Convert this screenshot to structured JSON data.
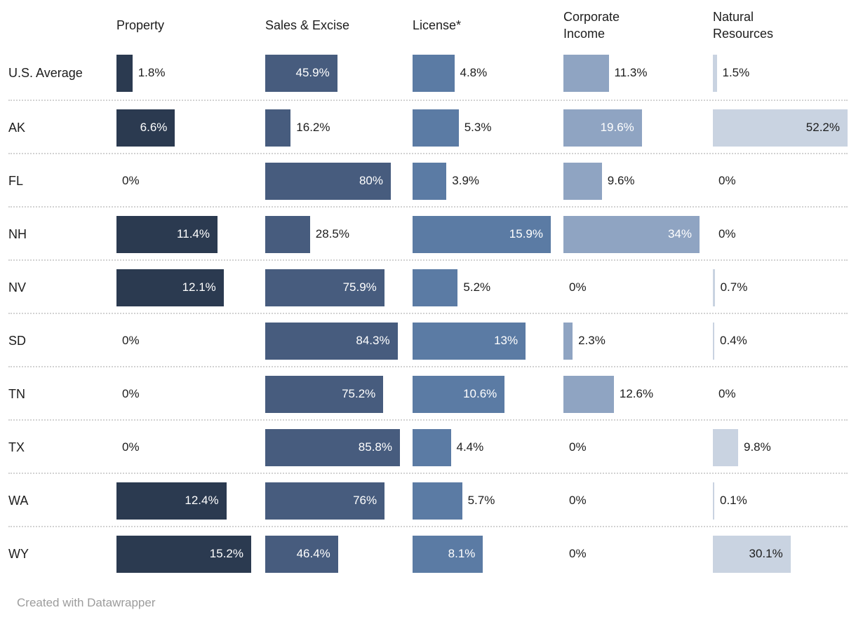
{
  "chart_data": {
    "type": "bar",
    "variant": "horizontal-split-bars-table",
    "title": "",
    "legend_position": "none",
    "grid": "dotted-row-separators",
    "categories": [
      "U.S. Average",
      "AK",
      "FL",
      "NH",
      "NV",
      "SD",
      "TN",
      "TX",
      "WA",
      "WY"
    ],
    "series": [
      {
        "name": "Property",
        "color": "#2b3a50",
        "axis_max": 15.2,
        "values": [
          1.8,
          6.6,
          0,
          11.4,
          12.1,
          0,
          0,
          0,
          12.4,
          15.2
        ],
        "labels": [
          "1.8%",
          "6.6%",
          "0%",
          "11.4%",
          "12.1%",
          "0%",
          "0%",
          "0%",
          "12.4%",
          "15.2%"
        ]
      },
      {
        "name": "Sales & Excise",
        "color": "#475c7e",
        "axis_max": 85.8,
        "values": [
          45.9,
          16.2,
          80,
          28.5,
          75.9,
          84.3,
          75.2,
          85.8,
          76,
          46.4
        ],
        "labels": [
          "45.9%",
          "16.2%",
          "80%",
          "28.5%",
          "75.9%",
          "84.3%",
          "75.2%",
          "85.8%",
          "76%",
          "46.4%"
        ]
      },
      {
        "name": "License*",
        "color": "#5b7ba4",
        "axis_max": 15.9,
        "values": [
          4.8,
          5.3,
          3.9,
          15.9,
          5.2,
          13,
          10.6,
          4.4,
          5.7,
          8.1
        ],
        "labels": [
          "4.8%",
          "5.3%",
          "3.9%",
          "15.9%",
          "5.2%",
          "13%",
          "10.6%",
          "4.4%",
          "5.7%",
          "8.1%"
        ]
      },
      {
        "name": "Corporate Income",
        "color": "#8fa4c2",
        "axis_max": 34,
        "values": [
          11.3,
          19.6,
          9.6,
          34,
          0,
          2.3,
          12.6,
          0,
          0,
          0
        ],
        "labels": [
          "11.3%",
          "19.6%",
          "9.6%",
          "34%",
          "0%",
          "2.3%",
          "12.6%",
          "0%",
          "0%",
          "0%"
        ]
      },
      {
        "name": "Natural Resources",
        "color": "#c9d3e1",
        "axis_max": 52.2,
        "values": [
          1.5,
          52.2,
          0,
          0,
          0.7,
          0.4,
          0,
          9.8,
          0.1,
          30.1
        ],
        "labels": [
          "1.5%",
          "52.2%",
          "0%",
          "0%",
          "0.7%",
          "0.4%",
          "0%",
          "9.8%",
          "0.1%",
          "30.1%"
        ]
      }
    ]
  },
  "footer": {
    "credit": "Created with Datawrapper"
  }
}
